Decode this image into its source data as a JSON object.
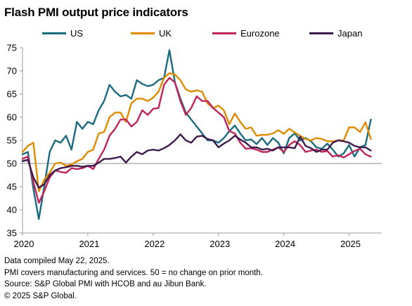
{
  "title": "Flash PMI output price indicators",
  "notes": [
    "Data compiled May 22, 2025.",
    "PMI covers manufacturing and services. 50 = no change on prior month.",
    "Source: S&P Global PMI with HCOB and au Jibun Bank.",
    "© 2025 S&P Global."
  ],
  "chart_data": {
    "type": "line",
    "title": "Flash PMI output price indicators",
    "xlabel": "",
    "ylabel": "",
    "ylim": [
      35,
      75
    ],
    "yticks": [
      35,
      40,
      45,
      50,
      55,
      60,
      65,
      70,
      75
    ],
    "xlim": [
      2020.0,
      2025.5
    ],
    "xticks": [
      {
        "label": "2020",
        "value": 2020
      },
      {
        "label": "2021",
        "value": 2021
      },
      {
        "label": "2022",
        "value": 2022
      },
      {
        "label": "2023",
        "value": 2023
      },
      {
        "label": "2024",
        "value": 2024
      },
      {
        "label": "2025",
        "value": 2025
      }
    ],
    "reference_line": 50,
    "legend_position": "top",
    "grid": false,
    "series": [
      {
        "name": "US",
        "color": "#1a6b80",
        "x": [
          2020.0,
          2020.083,
          2020.167,
          2020.25,
          2020.333,
          2020.417,
          2020.5,
          2020.583,
          2020.667,
          2020.75,
          2020.833,
          2020.917,
          2021.0,
          2021.083,
          2021.167,
          2021.25,
          2021.333,
          2021.417,
          2021.5,
          2021.583,
          2021.667,
          2021.75,
          2021.833,
          2021.917,
          2022.0,
          2022.083,
          2022.167,
          2022.25,
          2022.333,
          2022.417,
          2022.5,
          2022.583,
          2022.667,
          2022.75,
          2022.833,
          2022.917,
          2023.0,
          2023.083,
          2023.167,
          2023.25,
          2023.333,
          2023.417,
          2023.5,
          2023.583,
          2023.667,
          2023.75,
          2023.833,
          2023.917,
          2024.0,
          2024.083,
          2024.167,
          2024.25,
          2024.333,
          2024.417,
          2024.5,
          2024.583,
          2024.667,
          2024.75,
          2024.833,
          2024.917,
          2025.0,
          2025.083,
          2025.167,
          2025.25,
          2025.333
        ],
        "values": [
          52.0,
          52.5,
          44.5,
          38.0,
          45.0,
          52.5,
          55.0,
          54.5,
          56.0,
          53.0,
          59.0,
          57.5,
          59.0,
          58.5,
          61.5,
          63.5,
          67.0,
          65.5,
          64.5,
          64.8,
          64.0,
          68.0,
          67.2,
          66.7,
          67.0,
          68.0,
          68.5,
          74.5,
          67.5,
          64.0,
          61.0,
          59.5,
          58.0,
          56.5,
          55.0,
          55.0,
          54.5,
          55.5,
          57.0,
          58.2,
          56.5,
          55.0,
          55.2,
          54.2,
          55.5,
          54.0,
          55.5,
          54.5,
          52.2,
          55.5,
          56.5,
          55.0,
          55.5,
          54.8,
          53.5,
          53.2,
          54.3,
          53.0,
          51.5,
          52.2,
          54.0,
          51.5,
          53.5,
          54.0,
          59.5
        ]
      },
      {
        "name": "UK",
        "color": "#e08a00",
        "x": [
          2020.0,
          2020.083,
          2020.167,
          2020.25,
          2020.333,
          2020.417,
          2020.5,
          2020.583,
          2020.667,
          2020.75,
          2020.833,
          2020.917,
          2021.0,
          2021.083,
          2021.167,
          2021.25,
          2021.333,
          2021.417,
          2021.5,
          2021.583,
          2021.667,
          2021.75,
          2021.833,
          2021.917,
          2022.0,
          2022.083,
          2022.167,
          2022.25,
          2022.333,
          2022.417,
          2022.5,
          2022.583,
          2022.667,
          2022.75,
          2022.833,
          2022.917,
          2023.0,
          2023.083,
          2023.167,
          2023.25,
          2023.333,
          2023.417,
          2023.5,
          2023.583,
          2023.667,
          2023.75,
          2023.833,
          2023.917,
          2024.0,
          2024.083,
          2024.167,
          2024.25,
          2024.333,
          2024.417,
          2024.5,
          2024.583,
          2024.667,
          2024.75,
          2024.833,
          2024.917,
          2025.0,
          2025.083,
          2025.167,
          2025.25,
          2025.333
        ],
        "values": [
          52.5,
          53.8,
          54.5,
          44.0,
          46.5,
          48.0,
          50.0,
          50.2,
          49.5,
          49.8,
          50.5,
          51.0,
          52.5,
          53.0,
          56.5,
          56.8,
          60.0,
          61.0,
          61.0,
          59.0,
          63.0,
          64.0,
          64.0,
          63.5,
          64.2,
          65.5,
          68.5,
          69.5,
          69.2,
          68.0,
          66.0,
          65.5,
          65.8,
          65.5,
          63.0,
          62.0,
          62.5,
          61.5,
          58.5,
          60.8,
          59.0,
          57.5,
          57.8,
          56.0,
          56.2,
          56.2,
          56.5,
          57.2,
          56.4,
          57.5,
          56.7,
          56.0,
          55.3,
          55.0,
          55.5,
          55.3,
          54.8,
          54.8,
          55.0,
          55.0,
          57.8,
          57.8,
          56.8,
          58.9,
          55.3
        ]
      },
      {
        "name": "Eurozone",
        "color": "#c0245a",
        "x": [
          2020.0,
          2020.083,
          2020.167,
          2020.25,
          2020.333,
          2020.417,
          2020.5,
          2020.583,
          2020.667,
          2020.75,
          2020.833,
          2020.917,
          2021.0,
          2021.083,
          2021.167,
          2021.25,
          2021.333,
          2021.417,
          2021.5,
          2021.583,
          2021.667,
          2021.75,
          2021.833,
          2021.917,
          2022.0,
          2022.083,
          2022.167,
          2022.25,
          2022.333,
          2022.417,
          2022.5,
          2022.583,
          2022.667,
          2022.75,
          2022.833,
          2022.917,
          2023.0,
          2023.083,
          2023.167,
          2023.25,
          2023.333,
          2023.417,
          2023.5,
          2023.583,
          2023.667,
          2023.75,
          2023.833,
          2023.917,
          2024.0,
          2024.083,
          2024.167,
          2024.25,
          2024.333,
          2024.417,
          2024.5,
          2024.583,
          2024.667,
          2024.75,
          2024.833,
          2024.917,
          2025.0,
          2025.083,
          2025.167,
          2025.25,
          2025.333
        ],
        "values": [
          51.0,
          51.5,
          46.0,
          41.5,
          44.0,
          47.0,
          48.5,
          48.2,
          48.0,
          49.0,
          48.8,
          49.0,
          49.5,
          48.8,
          51.0,
          53.0,
          56.0,
          57.5,
          59.5,
          59.5,
          58.0,
          59.0,
          61.5,
          60.5,
          61.8,
          62.0,
          67.0,
          68.5,
          67.5,
          63.5,
          60.5,
          62.0,
          64.5,
          63.5,
          63.5,
          62.0,
          61.0,
          60.0,
          57.0,
          56.5,
          54.5,
          53.2,
          53.3,
          53.0,
          52.5,
          52.5,
          53.0,
          53.5,
          52.5,
          54.0,
          54.8,
          54.0,
          52.5,
          52.8,
          53.0,
          52.5,
          52.7,
          51.5,
          51.8,
          51.3,
          52.0,
          52.7,
          53.2,
          52.0,
          51.5
        ]
      },
      {
        "name": "Japan",
        "color": "#3d1a4d",
        "x": [
          2020.0,
          2020.083,
          2020.167,
          2020.25,
          2020.333,
          2020.417,
          2020.5,
          2020.583,
          2020.667,
          2020.75,
          2020.833,
          2020.917,
          2021.0,
          2021.083,
          2021.167,
          2021.25,
          2021.333,
          2021.417,
          2021.5,
          2021.583,
          2021.667,
          2021.75,
          2021.833,
          2021.917,
          2022.0,
          2022.083,
          2022.167,
          2022.25,
          2022.333,
          2022.417,
          2022.5,
          2022.583,
          2022.667,
          2022.75,
          2022.833,
          2022.917,
          2023.0,
          2023.083,
          2023.167,
          2023.25,
          2023.333,
          2023.417,
          2023.5,
          2023.583,
          2023.667,
          2023.75,
          2023.833,
          2023.917,
          2024.0,
          2024.083,
          2024.167,
          2024.25,
          2024.333,
          2024.417,
          2024.5,
          2024.583,
          2024.667,
          2024.75,
          2024.833,
          2024.917,
          2025.0,
          2025.083,
          2025.167,
          2025.25,
          2025.333
        ],
        "values": [
          50.5,
          50.8,
          47.0,
          44.8,
          45.5,
          47.5,
          48.5,
          49.0,
          49.2,
          49.5,
          49.5,
          49.3,
          49.5,
          49.5,
          50.2,
          51.0,
          51.0,
          51.2,
          51.5,
          50.2,
          51.5,
          52.5,
          52.0,
          52.8,
          53.0,
          52.8,
          53.3,
          54.0,
          55.0,
          56.3,
          55.0,
          54.5,
          55.8,
          56.0,
          55.3,
          55.0,
          53.5,
          54.3,
          55.0,
          56.0,
          55.2,
          54.5,
          53.5,
          53.5,
          53.0,
          53.2,
          52.8,
          53.5,
          53.5,
          53.5,
          53.3,
          55.8,
          53.8,
          53.3,
          52.5,
          53.0,
          53.0,
          54.5,
          55.0,
          54.8,
          54.5,
          53.8,
          53.5,
          53.5,
          52.8
        ]
      }
    ]
  }
}
